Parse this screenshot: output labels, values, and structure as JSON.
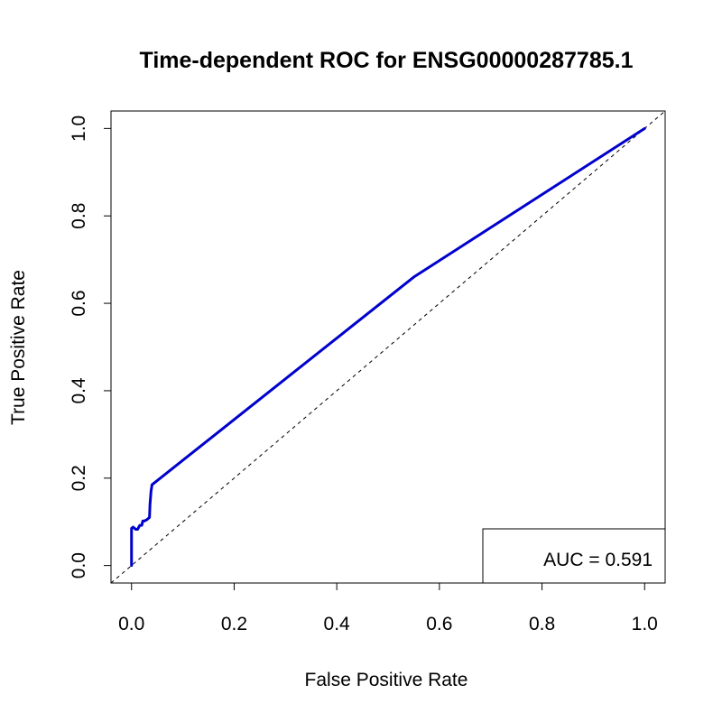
{
  "chart_data": {
    "type": "line",
    "title": "Time-dependent ROC for ENSG00000287785.1",
    "xlabel": "False Positive Rate",
    "ylabel": "True Positive Rate",
    "xlim": [
      -0.04,
      1.04
    ],
    "ylim": [
      -0.04,
      1.04
    ],
    "x_ticks": [
      0.0,
      0.2,
      0.4,
      0.6,
      0.8,
      1.0
    ],
    "y_ticks": [
      0.0,
      0.2,
      0.4,
      0.6,
      0.8,
      1.0
    ],
    "x_tick_labels": [
      "0.0",
      "0.2",
      "0.4",
      "0.6",
      "0.8",
      "1.0"
    ],
    "y_tick_labels": [
      "0.0",
      "0.2",
      "0.4",
      "0.6",
      "0.8",
      "1.0"
    ],
    "grid": false,
    "legend_position": "bottom-right",
    "legend_text": "AUC = 0.591",
    "series": [
      {
        "color": "#0000CD",
        "style": "solid",
        "x": [
          0.0,
          0.0,
          0.003,
          0.008,
          0.012,
          0.016,
          0.02,
          0.022,
          0.025,
          0.03,
          0.035,
          0.036,
          0.038,
          0.04,
          0.55,
          1.0
        ],
        "y": [
          0.0,
          0.085,
          0.088,
          0.083,
          0.083,
          0.092,
          0.092,
          0.102,
          0.102,
          0.105,
          0.11,
          0.14,
          0.17,
          0.185,
          0.66,
          1.0
        ]
      }
    ],
    "reference_line": {
      "color": "#000000",
      "style": "dashed",
      "x": [
        0.0,
        1.0
      ],
      "y": [
        0.0,
        1.0
      ]
    }
  }
}
